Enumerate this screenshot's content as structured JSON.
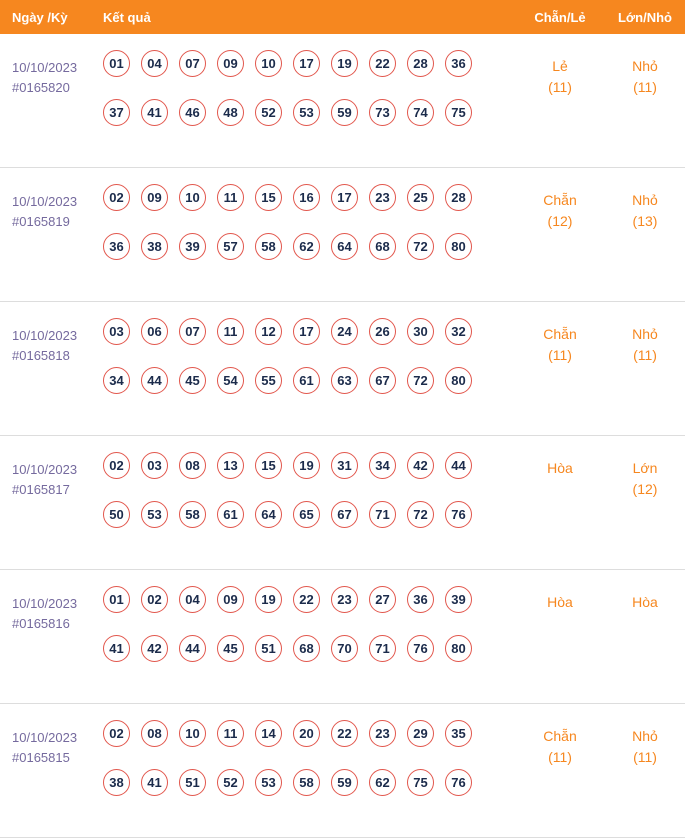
{
  "theme": {
    "header_bg": "#F6871F",
    "accent": "#F6871F",
    "ball_border": "#E2574D",
    "number_color": "#1B2B4B",
    "date_color": "#756A9E",
    "separator": "#DDDDDD"
  },
  "table": {
    "headers": {
      "date": "Ngày /Kỳ",
      "result": "Kết quả",
      "even_odd": "Chẵn/Lẻ",
      "big_small": "Lớn/Nhỏ"
    },
    "rows": [
      {
        "date": "10/10/2023",
        "id": "#0165820",
        "numbers": [
          "01",
          "04",
          "07",
          "09",
          "10",
          "17",
          "19",
          "22",
          "28",
          "36",
          "37",
          "41",
          "46",
          "48",
          "52",
          "53",
          "59",
          "73",
          "74",
          "75"
        ],
        "even_odd": {
          "label": "Lẻ",
          "count": "(11)"
        },
        "big_small": {
          "label": "Nhỏ",
          "count": "(11)"
        }
      },
      {
        "date": "10/10/2023",
        "id": "#0165819",
        "numbers": [
          "02",
          "09",
          "10",
          "11",
          "15",
          "16",
          "17",
          "23",
          "25",
          "28",
          "36",
          "38",
          "39",
          "57",
          "58",
          "62",
          "64",
          "68",
          "72",
          "80"
        ],
        "even_odd": {
          "label": "Chẵn",
          "count": "(12)"
        },
        "big_small": {
          "label": "Nhỏ",
          "count": "(13)"
        }
      },
      {
        "date": "10/10/2023",
        "id": "#0165818",
        "numbers": [
          "03",
          "06",
          "07",
          "11",
          "12",
          "17",
          "24",
          "26",
          "30",
          "32",
          "34",
          "44",
          "45",
          "54",
          "55",
          "61",
          "63",
          "67",
          "72",
          "80"
        ],
        "even_odd": {
          "label": "Chẵn",
          "count": "(11)"
        },
        "big_small": {
          "label": "Nhỏ",
          "count": "(11)"
        }
      },
      {
        "date": "10/10/2023",
        "id": "#0165817",
        "numbers": [
          "02",
          "03",
          "08",
          "13",
          "15",
          "19",
          "31",
          "34",
          "42",
          "44",
          "50",
          "53",
          "58",
          "61",
          "64",
          "65",
          "67",
          "71",
          "72",
          "76"
        ],
        "even_odd": {
          "label": "Hòa",
          "count": ""
        },
        "big_small": {
          "label": "Lớn",
          "count": "(12)"
        }
      },
      {
        "date": "10/10/2023",
        "id": "#0165816",
        "numbers": [
          "01",
          "02",
          "04",
          "09",
          "19",
          "22",
          "23",
          "27",
          "36",
          "39",
          "41",
          "42",
          "44",
          "45",
          "51",
          "68",
          "70",
          "71",
          "76",
          "80"
        ],
        "even_odd": {
          "label": "Hòa",
          "count": ""
        },
        "big_small": {
          "label": "Hòa",
          "count": ""
        }
      },
      {
        "date": "10/10/2023",
        "id": "#0165815",
        "numbers": [
          "02",
          "08",
          "10",
          "11",
          "14",
          "20",
          "22",
          "23",
          "29",
          "35",
          "38",
          "41",
          "51",
          "52",
          "53",
          "58",
          "59",
          "62",
          "75",
          "76"
        ],
        "even_odd": {
          "label": "Chẵn",
          "count": "(11)"
        },
        "big_small": {
          "label": "Nhỏ",
          "count": "(11)"
        }
      }
    ]
  }
}
